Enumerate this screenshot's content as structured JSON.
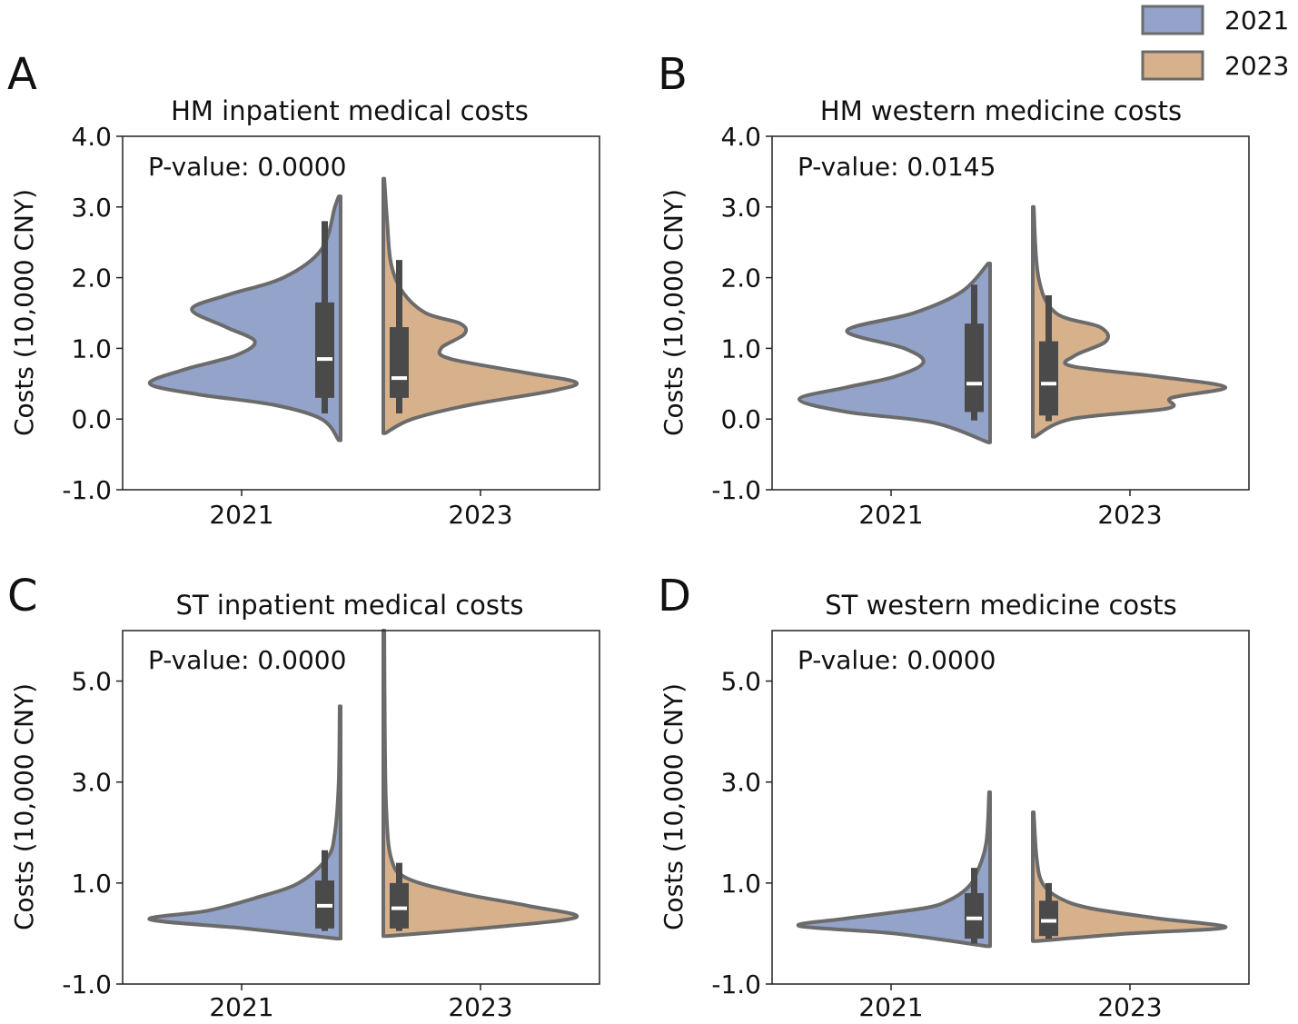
{
  "colors": {
    "y2021": "#93a3c9",
    "y2023": "#d7b18c",
    "outline": "#6b6b6b",
    "box": "#4a4a4a",
    "median": "#ffffff"
  },
  "legend": [
    {
      "label": "2021",
      "color": "#93a3c9"
    },
    {
      "label": "2023",
      "color": "#d7b18c"
    }
  ],
  "chart_data": [
    {
      "panel": "A",
      "type": "split-violin",
      "title": "HM inpatient medical costs",
      "ylabel": "Costs (10,000 CNY)",
      "xlabel": "",
      "ylim": [
        -1.0,
        4.0
      ],
      "yticks": [
        -1.0,
        0.0,
        1.0,
        2.0,
        3.0,
        4.0
      ],
      "ytick_labels": [
        "-1.0",
        "0.0",
        "1.0",
        "2.0",
        "3.0",
        "4.0"
      ],
      "categories": [
        "2021",
        "2023"
      ],
      "annotation": "P-value: 0.0000",
      "series": [
        {
          "name": "2021",
          "side": "left",
          "density": [
            [
              -0.3,
              0.01
            ],
            [
              0.0,
              0.1
            ],
            [
              0.2,
              0.35
            ],
            [
              0.35,
              0.75
            ],
            [
              0.5,
              1.0
            ],
            [
              0.7,
              0.82
            ],
            [
              0.9,
              0.55
            ],
            [
              1.1,
              0.45
            ],
            [
              1.3,
              0.6
            ],
            [
              1.55,
              0.78
            ],
            [
              1.75,
              0.6
            ],
            [
              2.0,
              0.3
            ],
            [
              2.4,
              0.1
            ],
            [
              3.0,
              0.03
            ],
            [
              3.15,
              0.01
            ]
          ],
          "box": {
            "q1": 0.3,
            "median": 0.85,
            "q3": 1.65,
            "whisker_low": 0.08,
            "whisker_high": 2.8
          }
        },
        {
          "name": "2023",
          "side": "right",
          "density": [
            [
              -0.2,
              0.01
            ],
            [
              0.0,
              0.15
            ],
            [
              0.2,
              0.45
            ],
            [
              0.4,
              0.88
            ],
            [
              0.52,
              1.0
            ],
            [
              0.65,
              0.75
            ],
            [
              0.85,
              0.35
            ],
            [
              1.0,
              0.3
            ],
            [
              1.2,
              0.42
            ],
            [
              1.35,
              0.4
            ],
            [
              1.5,
              0.22
            ],
            [
              1.8,
              0.1
            ],
            [
              2.2,
              0.04
            ],
            [
              2.8,
              0.02
            ],
            [
              3.4,
              0.005
            ]
          ],
          "box": {
            "q1": 0.3,
            "median": 0.58,
            "q3": 1.3,
            "whisker_low": 0.08,
            "whisker_high": 2.25
          }
        }
      ]
    },
    {
      "panel": "B",
      "type": "split-violin",
      "title": "HM western medicine costs",
      "ylabel": "Costs (10,000 CNY)",
      "xlabel": "",
      "ylim": [
        -1.0,
        4.0
      ],
      "yticks": [
        -1.0,
        0.0,
        1.0,
        2.0,
        3.0,
        4.0
      ],
      "ytick_labels": [
        "-1.0",
        "0.0",
        "1.0",
        "2.0",
        "3.0",
        "4.0"
      ],
      "categories": [
        "2021",
        "2023"
      ],
      "annotation": "P-value: 0.0145",
      "series": [
        {
          "name": "2021",
          "side": "left",
          "density": [
            [
              -0.33,
              0.01
            ],
            [
              -0.05,
              0.3
            ],
            [
              0.1,
              0.75
            ],
            [
              0.28,
              1.0
            ],
            [
              0.45,
              0.75
            ],
            [
              0.6,
              0.5
            ],
            [
              0.8,
              0.35
            ],
            [
              1.0,
              0.45
            ],
            [
              1.25,
              0.75
            ],
            [
              1.5,
              0.4
            ],
            [
              1.8,
              0.15
            ],
            [
              2.2,
              0.01
            ]
          ],
          "box": {
            "q1": 0.1,
            "median": 0.5,
            "q3": 1.35,
            "whisker_low": -0.02,
            "whisker_high": 1.9
          }
        },
        {
          "name": "2023",
          "side": "right",
          "density": [
            [
              -0.25,
              0.01
            ],
            [
              0.0,
              0.2
            ],
            [
              0.15,
              0.7
            ],
            [
              0.3,
              0.72
            ],
            [
              0.45,
              1.0
            ],
            [
              0.6,
              0.65
            ],
            [
              0.75,
              0.2
            ],
            [
              0.9,
              0.22
            ],
            [
              1.1,
              0.38
            ],
            [
              1.3,
              0.35
            ],
            [
              1.5,
              0.12
            ],
            [
              2.0,
              0.03
            ],
            [
              3.0,
              0.005
            ]
          ],
          "box": {
            "q1": 0.05,
            "median": 0.5,
            "q3": 1.1,
            "whisker_low": -0.03,
            "whisker_high": 1.75
          }
        }
      ]
    },
    {
      "panel": "C",
      "type": "split-violin",
      "title": "ST inpatient medical costs",
      "ylabel": "Costs (10,000 CNY)",
      "xlabel": "",
      "ylim": [
        -1.0,
        6.0
      ],
      "yticks": [
        -1.0,
        1.0,
        3.0,
        5.0
      ],
      "ytick_labels": [
        "-1.0",
        "1.0",
        "3.0",
        "5.0"
      ],
      "categories": [
        "2021",
        "2023"
      ],
      "annotation": "P-value: 0.0000",
      "series": [
        {
          "name": "2021",
          "side": "left",
          "density": [
            [
              -0.1,
              0.02
            ],
            [
              0.1,
              0.5
            ],
            [
              0.28,
              1.0
            ],
            [
              0.45,
              0.7
            ],
            [
              0.7,
              0.45
            ],
            [
              1.0,
              0.22
            ],
            [
              1.5,
              0.07
            ],
            [
              2.0,
              0.03
            ],
            [
              3.0,
              0.01
            ],
            [
              4.5,
              0.005
            ]
          ],
          "box": {
            "q1": 0.1,
            "median": 0.55,
            "q3": 1.05,
            "whisker_low": 0.05,
            "whisker_high": 1.65
          }
        },
        {
          "name": "2023",
          "side": "right",
          "density": [
            [
              -0.05,
              0.02
            ],
            [
              0.1,
              0.5
            ],
            [
              0.32,
              1.0
            ],
            [
              0.55,
              0.75
            ],
            [
              0.8,
              0.4
            ],
            [
              1.1,
              0.12
            ],
            [
              1.5,
              0.04
            ],
            [
              2.5,
              0.015
            ],
            [
              4.0,
              0.008
            ],
            [
              6.0,
              0.005
            ]
          ],
          "box": {
            "q1": 0.1,
            "median": 0.5,
            "q3": 1.0,
            "whisker_low": 0.05,
            "whisker_high": 1.4
          }
        }
      ]
    },
    {
      "panel": "D",
      "type": "split-violin",
      "title": "ST western medicine costs",
      "ylabel": "Costs (10,000 CNY)",
      "xlabel": "",
      "ylim": [
        -1.0,
        6.0
      ],
      "yticks": [
        -1.0,
        1.0,
        3.0,
        5.0
      ],
      "ytick_labels": [
        "-1.0",
        "1.0",
        "3.0",
        "5.0"
      ],
      "categories": [
        "2021",
        "2023"
      ],
      "annotation": "P-value: 0.0000",
      "series": [
        {
          "name": "2021",
          "side": "left",
          "density": [
            [
              -0.25,
              0.02
            ],
            [
              0.0,
              0.5
            ],
            [
              0.15,
              1.0
            ],
            [
              0.3,
              0.75
            ],
            [
              0.5,
              0.35
            ],
            [
              0.65,
              0.22
            ],
            [
              0.9,
              0.12
            ],
            [
              1.2,
              0.07
            ],
            [
              1.8,
              0.02
            ],
            [
              2.8,
              0.005
            ]
          ],
          "box": {
            "q1": -0.1,
            "median": 0.3,
            "q3": 0.8,
            "whisker_low": -0.2,
            "whisker_high": 1.3
          }
        },
        {
          "name": "2023",
          "side": "right",
          "density": [
            [
              -0.15,
              0.02
            ],
            [
              0.0,
              0.5
            ],
            [
              0.12,
              1.0
            ],
            [
              0.3,
              0.65
            ],
            [
              0.5,
              0.3
            ],
            [
              0.7,
              0.14
            ],
            [
              1.0,
              0.05
            ],
            [
              1.5,
              0.02
            ],
            [
              2.4,
              0.005
            ]
          ],
          "box": {
            "q1": -0.05,
            "median": 0.25,
            "q3": 0.65,
            "whisker_low": -0.1,
            "whisker_high": 1.0
          }
        }
      ]
    }
  ]
}
